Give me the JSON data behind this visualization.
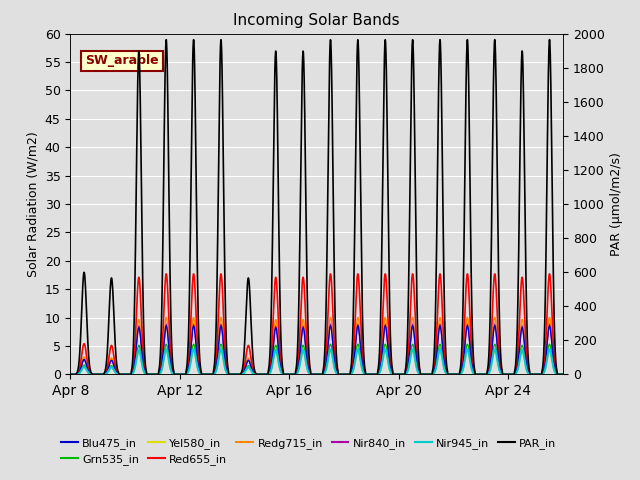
{
  "title": "Incoming Solar Bands",
  "ylabel_left": "Solar Radiation (W/m2)",
  "ylabel_right": "PAR (μmol/m2/s)",
  "ylim_left": [
    0,
    60
  ],
  "ylim_right": [
    0,
    2000
  ],
  "annotation_text": "SW_arable",
  "bg_color": "#e0e0e0",
  "series": {
    "Blu475_in": {
      "color": "#0000cc",
      "lw": 1.0
    },
    "Grn535_in": {
      "color": "#00bb00",
      "lw": 1.0
    },
    "Yel580_in": {
      "color": "#dddd00",
      "lw": 1.0
    },
    "Red655_in": {
      "color": "#ff0000",
      "lw": 1.2
    },
    "Redg715_in": {
      "color": "#ff8800",
      "lw": 1.0
    },
    "Nir840_in": {
      "color": "#aa00aa",
      "lw": 1.0
    },
    "Nir945_in": {
      "color": "#00cccc",
      "lw": 1.5
    },
    "PAR_in": {
      "color": "#000000",
      "lw": 1.2
    }
  },
  "xtick_labels": [
    "Apr 8",
    "Apr 12",
    "Apr 16",
    "Apr 20",
    "Apr 24"
  ],
  "xtick_positions": [
    0,
    4,
    8,
    12,
    16
  ],
  "n_days": 18,
  "n_pts_per_day": 144,
  "day_peaks": [
    18,
    17,
    57,
    59,
    59,
    59,
    17,
    57,
    57,
    59,
    59,
    59,
    59,
    59,
    59,
    59,
    57,
    59
  ],
  "band_fracs": {
    "Red655_in": 0.3,
    "Redg715_in": 0.17,
    "Nir840_in": 0.15,
    "Blu475_in": 0.145,
    "Grn535_in": 0.09,
    "Yel580_in": 0.07,
    "Nir945_in": 0.075
  },
  "par_scale": 33.3,
  "figsize": [
    6.4,
    4.8
  ],
  "dpi": 100
}
